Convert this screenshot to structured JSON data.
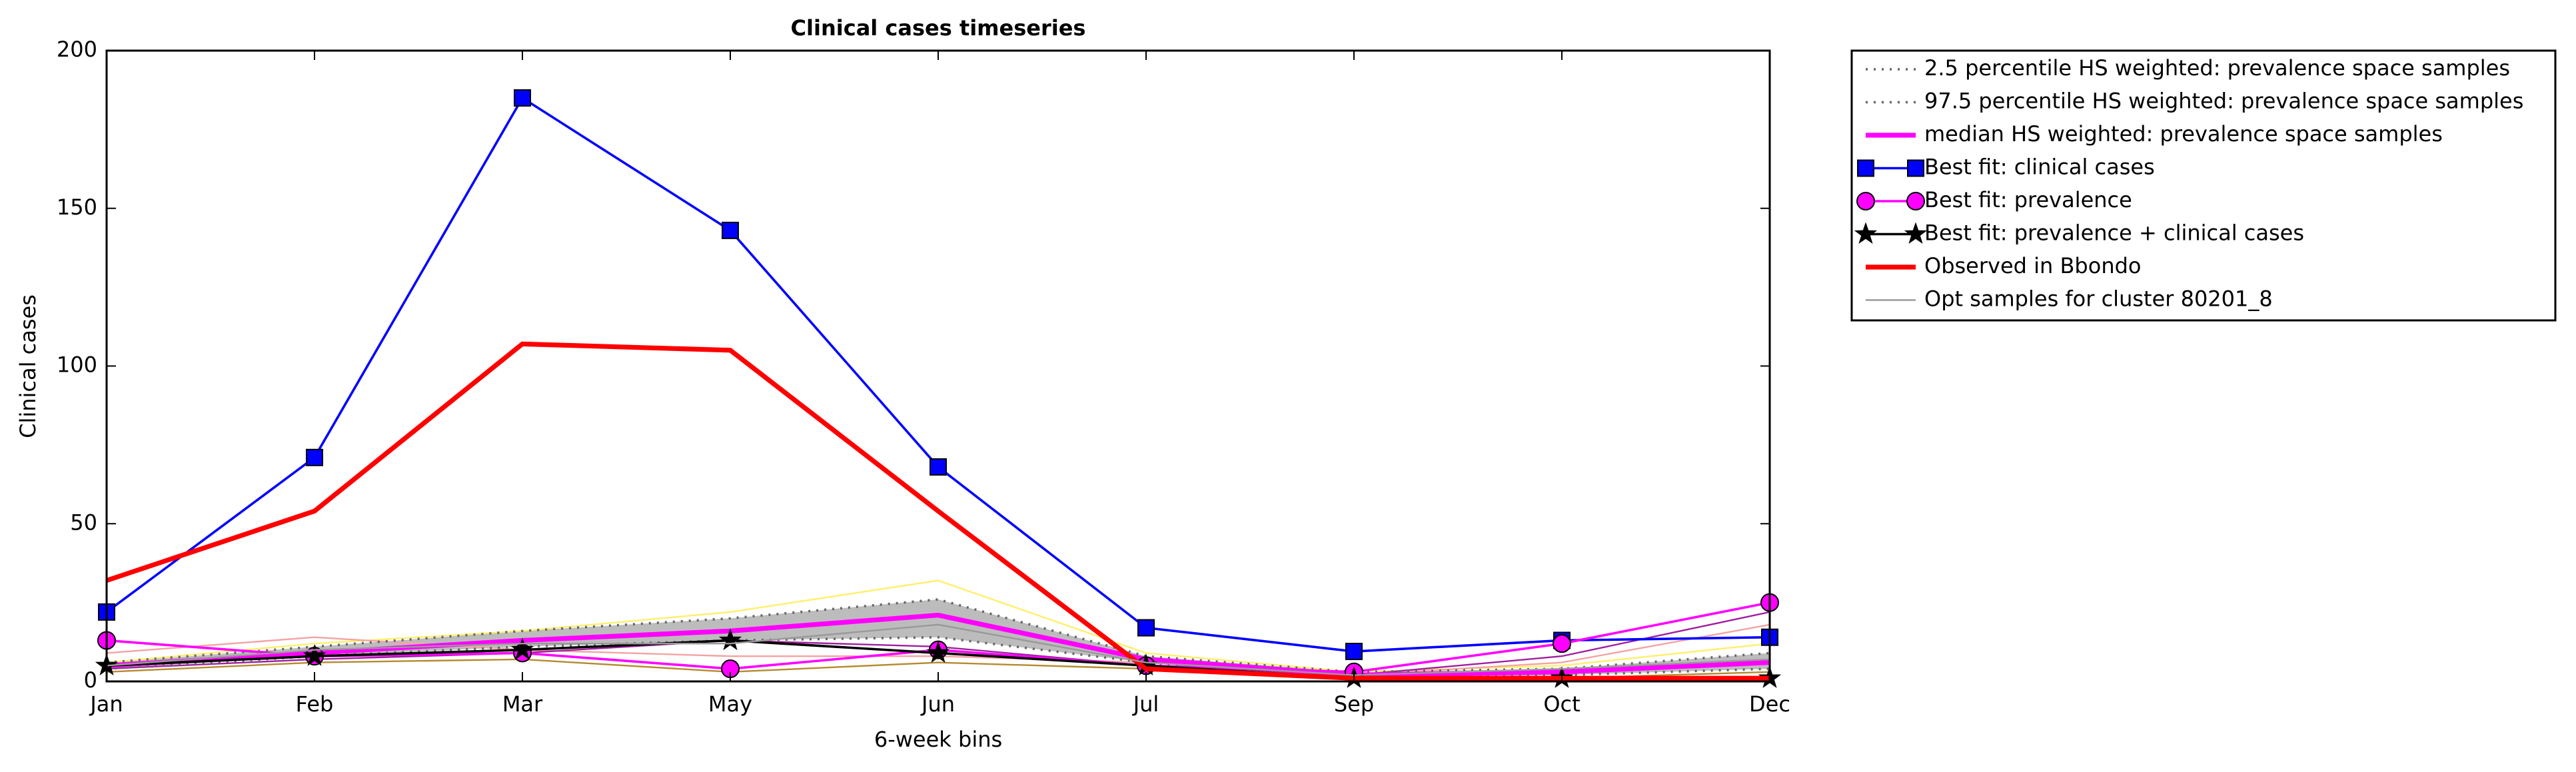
{
  "chart_data": {
    "type": "line",
    "title": "Clinical cases timeseries",
    "x_label": "6-week bins",
    "y_label": "Clinical cases",
    "categories": [
      "Jan",
      "Feb",
      "Mar",
      "May",
      "Jun",
      "Jul",
      "Sep",
      "Oct",
      "Dec"
    ],
    "ylim": [
      0,
      200
    ],
    "yticks": [
      0,
      50,
      100,
      150,
      200
    ],
    "legend": "outside-upper-right",
    "series": [
      {
        "color": "#ffef6a",
        "width": 1,
        "values": [
          6,
          12,
          16,
          22,
          32,
          9,
          3,
          5,
          12
        ]
      },
      {
        "color": "#f4a3a3",
        "width": 1,
        "values": [
          9,
          14,
          10,
          8,
          8,
          6,
          2,
          6,
          18
        ]
      },
      {
        "color": "#b58a2e",
        "width": 1,
        "values": [
          3,
          6,
          7,
          3,
          6,
          4,
          1,
          1,
          3
        ]
      },
      {
        "color": "#a020a0",
        "width": 1,
        "values": [
          4,
          7,
          9,
          13,
          11,
          5,
          2,
          8,
          22
        ]
      },
      {
        "name": "2.5 percentile HS weighted: prevalence space samples",
        "color": "#666666",
        "dash": "dotted",
        "width": 1.5,
        "values": [
          4,
          8,
          11,
          13,
          14,
          6,
          1,
          2,
          4
        ]
      },
      {
        "name": "97.5 percentile HS weighted: prevalence space samples",
        "color": "#666666",
        "dash": "dotted",
        "width": 1.5,
        "fill": "#b0b0b0",
        "values": [
          6,
          11,
          16,
          20,
          26,
          8,
          3,
          4,
          9
        ]
      },
      {
        "name": "median HS weighted: prevalence space samples",
        "color": "#ff00ff",
        "width": 3,
        "values": [
          5,
          9,
          13,
          16,
          21,
          7,
          2,
          3,
          6
        ]
      },
      {
        "name": "Best fit: clinical cases",
        "color": "#0000ff",
        "marker": "square",
        "width": 1.5,
        "values": [
          22,
          71,
          185,
          143,
          68,
          17,
          9.5,
          13,
          14
        ]
      },
      {
        "name": "Best fit: prevalence",
        "color": "#ff00ff",
        "marker": "circle",
        "width": 1.5,
        "values": [
          13,
          8,
          9,
          4,
          10,
          5,
          3,
          12,
          25
        ]
      },
      {
        "name": "Best fit: prevalence + clinical cases",
        "color": "#000000",
        "marker": "star",
        "width": 1.5,
        "values": [
          5,
          8,
          10,
          13,
          9,
          5,
          1,
          1,
          1
        ]
      },
      {
        "name": "Observed in Bbondo",
        "color": "#ff0000",
        "width": 3,
        "values": [
          32,
          54,
          107,
          105,
          54,
          4,
          1,
          1,
          1
        ]
      },
      {
        "name": "Opt samples for cluster 80201_8",
        "color": "#999999",
        "width": 1,
        "values": [
          5,
          10,
          12,
          12,
          18,
          6,
          2,
          4,
          7
        ]
      }
    ]
  }
}
